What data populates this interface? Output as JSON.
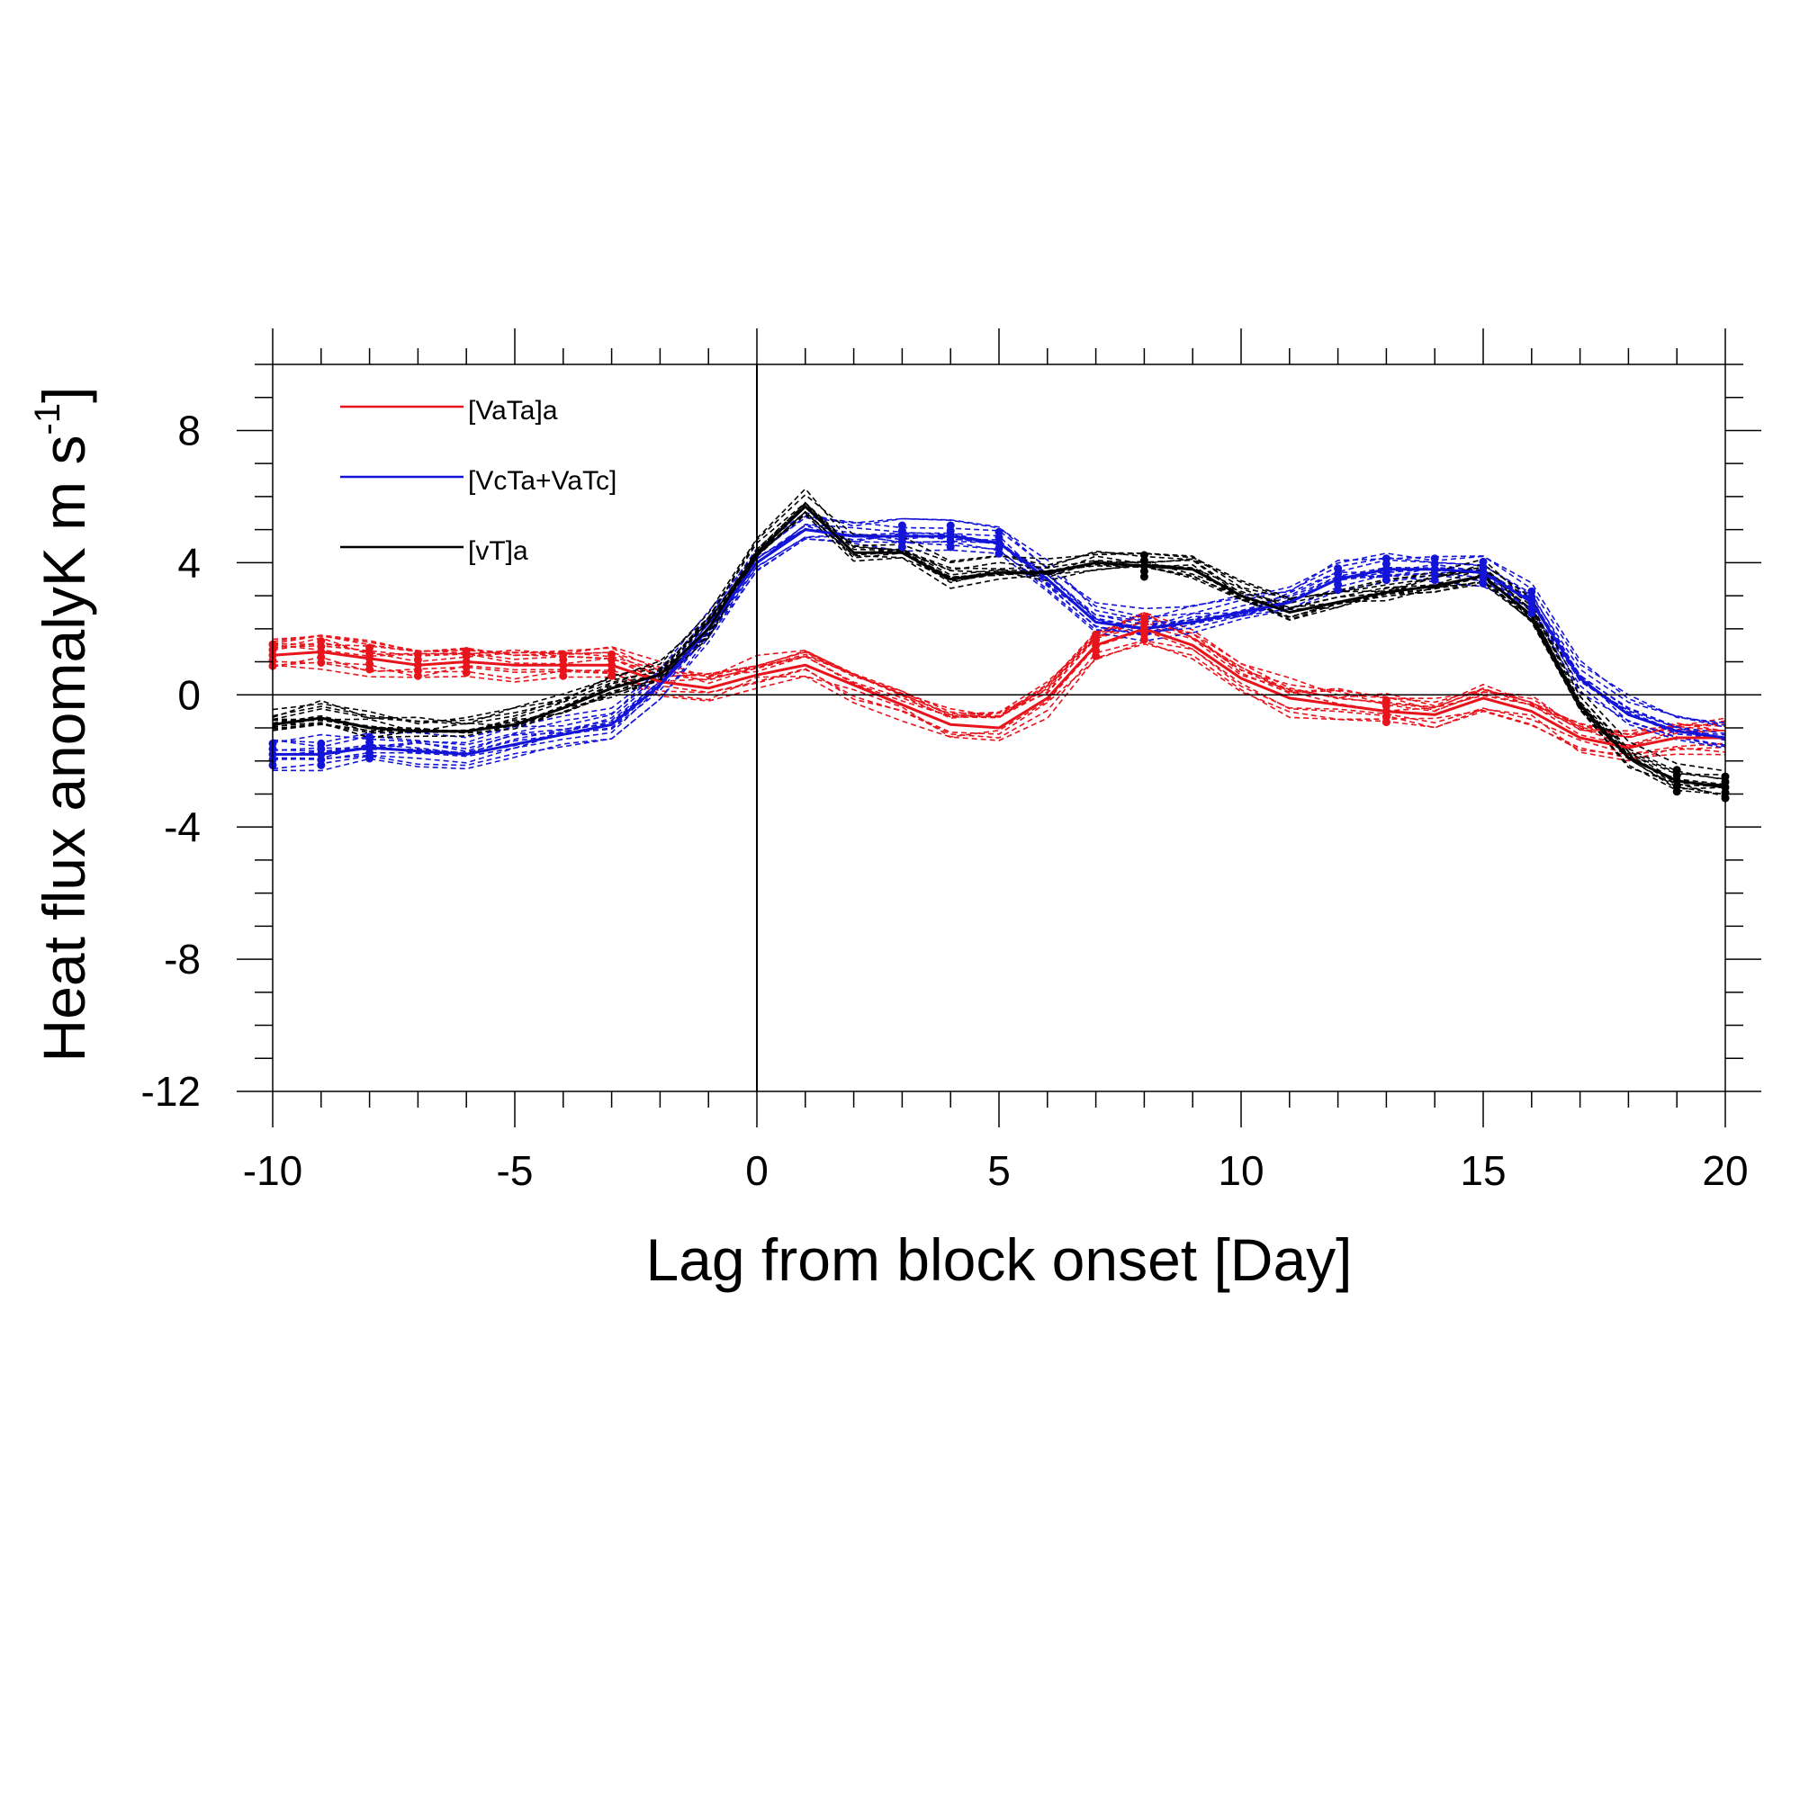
{
  "chart_data": {
    "type": "line",
    "title": "",
    "xlabel": "Lag from block onset [Day]",
    "ylabel_main": "Heat flux anomaly",
    "ylabel_unit": "K m s",
    "ylabel_unit_exp": "-1",
    "xlim": [
      -10,
      20
    ],
    "ylim": [
      -12,
      10
    ],
    "xticks": [
      -10,
      -5,
      0,
      5,
      10,
      15,
      20
    ],
    "yticks": [
      -12,
      -8,
      -4,
      0,
      4,
      8
    ],
    "x": [
      -10,
      -9,
      -8,
      -7,
      -6,
      -5,
      -4,
      -3,
      -2,
      -1,
      0,
      1,
      2,
      3,
      4,
      5,
      6,
      7,
      8,
      9,
      10,
      11,
      12,
      13,
      14,
      15,
      16,
      17,
      18,
      19,
      20
    ],
    "series": [
      {
        "name": "[VaTa]a",
        "color": "#e8141c",
        "values": [
          1.2,
          1.3,
          1.1,
          0.9,
          1.0,
          0.9,
          0.9,
          0.9,
          0.4,
          0.2,
          0.6,
          0.9,
          0.3,
          -0.3,
          -0.9,
          -1.0,
          -0.1,
          1.5,
          2.0,
          1.5,
          0.5,
          -0.1,
          -0.3,
          -0.5,
          -0.6,
          -0.1,
          -0.5,
          -1.3,
          -1.6,
          -1.3,
          -1.3
        ],
        "significant_x": [
          -10,
          -9,
          -8,
          -7,
          -6,
          -4,
          -3,
          7,
          8,
          13
        ]
      },
      {
        "name": "[VcTa+VaTc]",
        "color": "#1414d8",
        "values": [
          -1.8,
          -1.8,
          -1.6,
          -1.7,
          -1.8,
          -1.5,
          -1.2,
          -0.9,
          0.3,
          2.0,
          4.0,
          5.0,
          4.8,
          4.8,
          4.8,
          4.6,
          3.5,
          2.2,
          2.0,
          2.2,
          2.5,
          2.8,
          3.5,
          3.8,
          3.8,
          3.7,
          2.8,
          0.5,
          -0.6,
          -1.1,
          -1.3
        ],
        "significant_x": [
          -10,
          -9,
          -8,
          3,
          4,
          5,
          12,
          13,
          14,
          15,
          16
        ]
      },
      {
        "name": "[vT]a",
        "color": "#000000",
        "values": [
          -0.9,
          -0.7,
          -1.0,
          -1.1,
          -1.1,
          -0.9,
          -0.4,
          0.2,
          0.6,
          2.0,
          4.3,
          5.7,
          4.3,
          4.3,
          3.5,
          3.7,
          3.7,
          4.0,
          3.9,
          3.8,
          3.0,
          2.5,
          2.8,
          3.1,
          3.3,
          3.6,
          2.4,
          -0.3,
          -1.9,
          -2.6,
          -2.8
        ],
        "significant_x": [
          8,
          19,
          20
        ]
      }
    ],
    "legend": {
      "position": "top-left",
      "entries": [
        "[VaTa]a",
        "[VcTa+VaTc]",
        "[vT]a"
      ]
    },
    "reference_lines": {
      "zero_line": true,
      "vertical_at_x": 0
    },
    "ensemble_members_dashed": true,
    "grid": false
  }
}
